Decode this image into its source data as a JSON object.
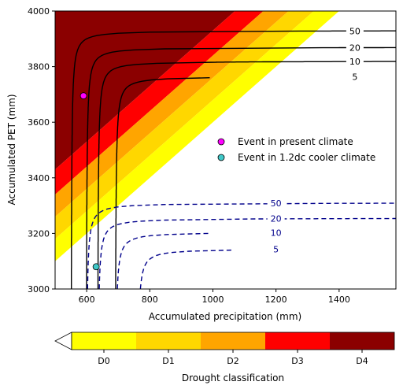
{
  "chart_data": {
    "type": "contour",
    "xlabel": "Accumulated precipitation (mm)",
    "ylabel": "Accumulated PET (mm)",
    "xlim": [
      500,
      1580
    ],
    "ylim": [
      3000,
      4000
    ],
    "xticks": [
      600,
      800,
      1000,
      1200,
      1400
    ],
    "yticks": [
      3000,
      3200,
      3400,
      3600,
      3800,
      4000
    ],
    "drought_bands": {
      "description": "diagonal shaded bands; PET threshold at a given precipitation P = P + offset",
      "classes": [
        {
          "name": "D0",
          "color": "#ffff00",
          "offset_min": 2600,
          "offset_max": 2680
        },
        {
          "name": "D1",
          "color": "#ffd700",
          "offset_min": 2680,
          "offset_max": 2760
        },
        {
          "name": "D2",
          "color": "#ffa500",
          "offset_min": 2760,
          "offset_max": 2840
        },
        {
          "name": "D3",
          "color": "#ff0000",
          "offset_min": 2840,
          "offset_max": 2930
        },
        {
          "name": "D4",
          "color": "#8b0000",
          "offset_min": 2930,
          "offset_max": 99999
        }
      ]
    },
    "present_contours": {
      "color": "#000000",
      "style": "solid",
      "lines": [
        {
          "label": "50",
          "p_asym": 550,
          "pet_asym": 3930
        },
        {
          "label": "20",
          "p_asym": 598,
          "pet_asym": 3870
        },
        {
          "label": "10",
          "p_asym": 634,
          "pet_asym": 3820
        },
        {
          "label": "5",
          "p_asym": 690,
          "pet_asym": 3765
        }
      ]
    },
    "cooler_contours": {
      "color": "#00008b",
      "style": "dashed",
      "lines": [
        {
          "label": "50",
          "p_asym": 598,
          "pet_asym": 3310
        },
        {
          "label": "20",
          "p_asym": 634,
          "pet_asym": 3255
        },
        {
          "label": "10",
          "p_asym": 690,
          "pet_asym": 3205
        },
        {
          "label": "5",
          "p_asym": 760,
          "pet_asym": 3145
        }
      ]
    },
    "points": [
      {
        "name": "Event in present climate",
        "x": 590,
        "y": 3695,
        "color": "#ff00ff"
      },
      {
        "name": "Event in 1.2dc cooler climate",
        "x": 630,
        "y": 3080,
        "color": "#40c8c8"
      }
    ],
    "legend": {
      "placement": "center-right",
      "entries": [
        "Event in present climate",
        "Event in 1.2dc cooler climate"
      ]
    },
    "colorbar": {
      "label": "Drought classification",
      "labels": [
        "D0",
        "D1",
        "D2",
        "D3",
        "D4"
      ],
      "colors": [
        "#ffff00",
        "#ffd700",
        "#ffa500",
        "#ff0000",
        "#8b0000"
      ],
      "extend": "min"
    }
  }
}
